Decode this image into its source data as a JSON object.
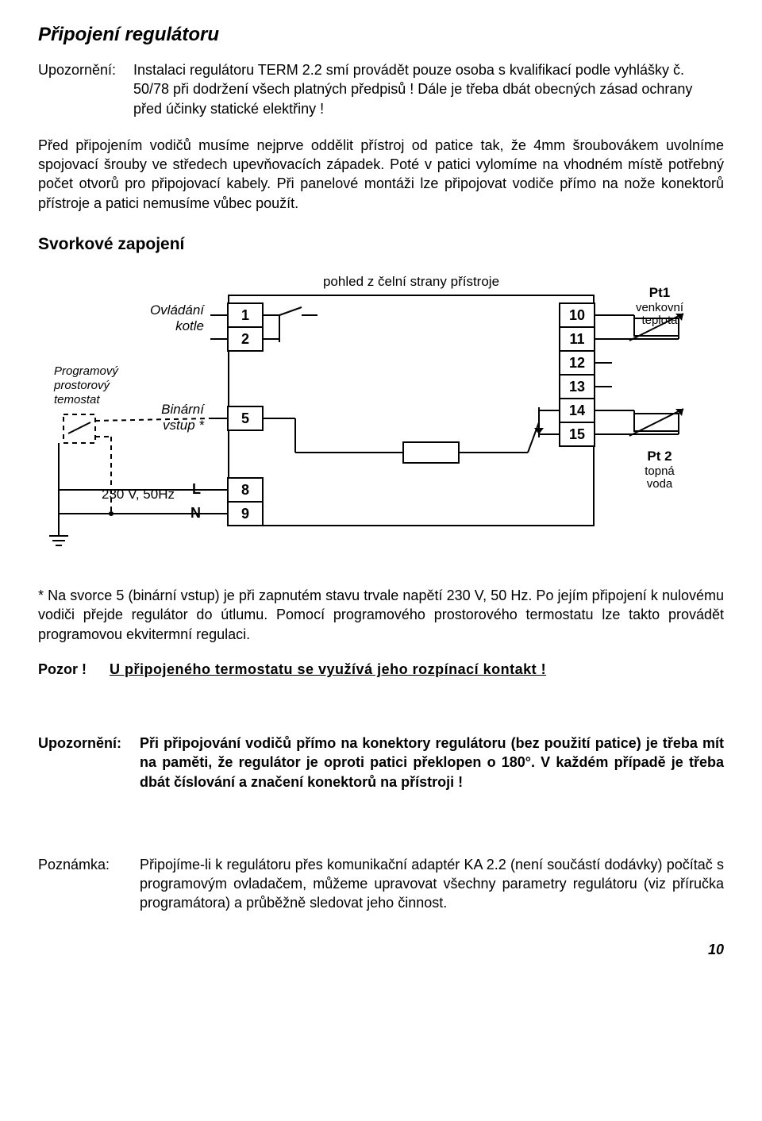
{
  "title": "Připojení regulátoru",
  "warning1": {
    "label": "Upozornění:",
    "body": "Instalaci regulátoru TERM 2.2 smí provádět pouze osoba s kvalifikací podle vyhlášky č. 50/78 při dodržení všech platných předpisů ! Dále je třeba dbát obecných zásad ochrany před účinky statické elektřiny !"
  },
  "para1": "Před připojením vodičů musíme nejprve oddělit přístroj od patice tak, že 4mm šroubovákem uvolníme spojovací šrouby ve středech upevňovacích západek. Poté v patici vylomíme na vhodném místě potřebný počet otvorů pro připojovací kabely. Při panelové montáži lze připojovat vodiče přímo na nože konektorů přístroje a patici nemusíme vůbec použít.",
  "section": "Svorkové zapojení",
  "diagram": {
    "caption": "pohled z čelní strany přístroje",
    "left_labels": {
      "ovladani": "Ovládání kotle",
      "thermostat": "Programový prostorový temostat",
      "bin": "Binární vstup *",
      "power": "230 V, 50Hz",
      "L": "L",
      "N": "N"
    },
    "right_labels": {
      "pt1": "Pt1",
      "pt1_sub": "venkovní teplota",
      "pt2": "Pt 2",
      "pt2_sub": "topná voda"
    },
    "terminals_left": [
      "1",
      "2",
      "5",
      "8",
      "9"
    ],
    "terminals_right": [
      "10",
      "11",
      "12",
      "13",
      "14",
      "15"
    ],
    "stroke": "#000000",
    "stroke_width": 2,
    "font_family": "Arial",
    "font_size_label": 17,
    "font_size_small": 15,
    "font_size_num": 18
  },
  "footnote": "* Na svorce 5 (binární vstup) je při zapnutém stavu trvale napětí 230 V, 50 Hz. Po jejím připojení k nulovému vodiči přejde regulátor do útlumu. Pomocí programového prostorového termostatu lze takto provádět programovou ekvitermní regulaci.",
  "pozor": {
    "label": "Pozor !",
    "body": "U připojeného termostatu se využívá jeho rozpínací kontakt !"
  },
  "warning2": {
    "label": "Upozornění:",
    "body": "Při připojování vodičů přímo na konektory regulátoru (bez použití patice) je třeba mít na paměti, že regulátor je oproti patici překlopen o 180°. V každém případě je třeba dbát číslování a značení konektorů na přístroji !"
  },
  "note": {
    "label": "Poznámka:",
    "body": "Připojíme-li k regulátoru přes komunikační adaptér KA 2.2 (není součástí dodávky) počítač s programovým ovladačem, můžeme upravovat všechny parametry regulátoru (viz příručka programátora) a průběžně sledovat jeho činnost."
  },
  "pagenum": "10"
}
